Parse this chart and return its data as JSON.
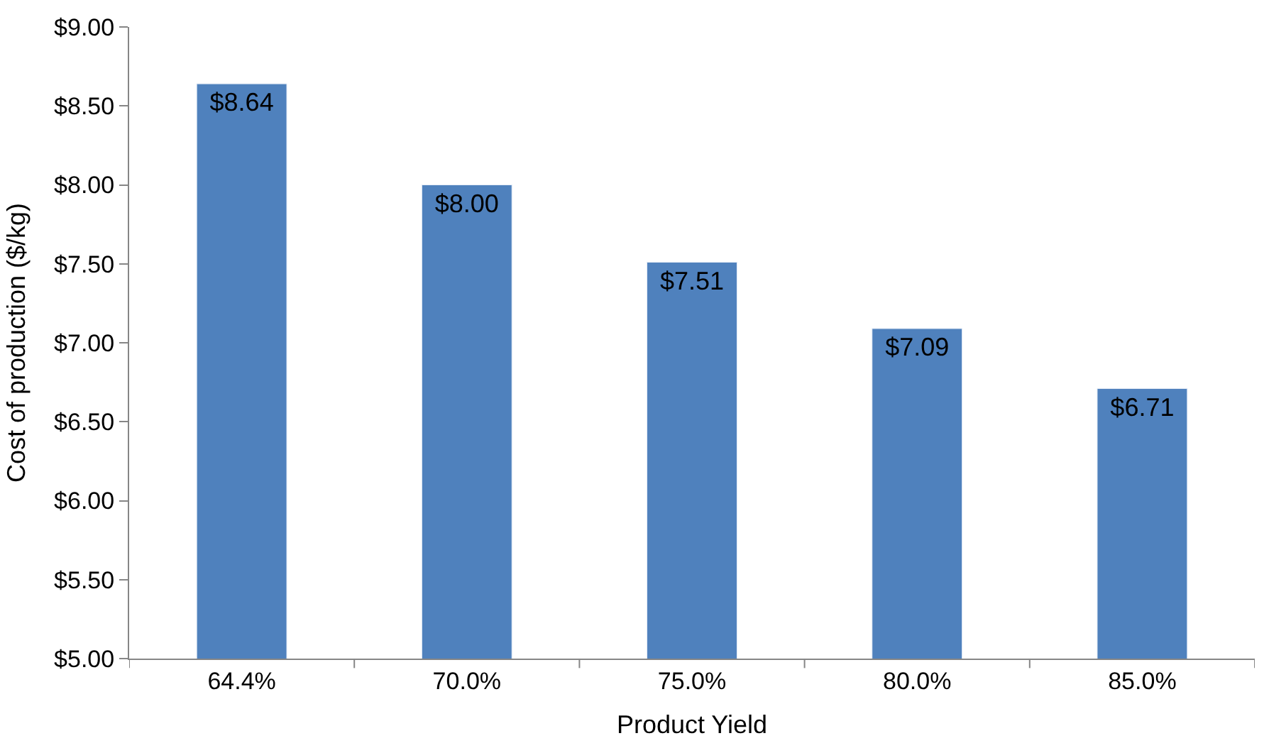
{
  "chart_data": {
    "type": "bar",
    "xlabel": "Product Yield",
    "ylabel": "Cost of production ($/kg)",
    "categories": [
      "64.4%",
      "70.0%",
      "75.0%",
      "80.0%",
      "85.0%"
    ],
    "values": [
      8.64,
      8.0,
      7.51,
      7.09,
      6.71
    ],
    "value_labels": [
      "$8.64",
      "$8.00",
      "$7.51",
      "$7.09",
      "$6.71"
    ],
    "color": "#4f81bd",
    "ylim": [
      5,
      9
    ],
    "yticks": [
      {
        "value": 5,
        "label": "$5.00"
      },
      {
        "value": 5.5,
        "label": "$5.50"
      },
      {
        "value": 6,
        "label": "$6.00"
      },
      {
        "value": 6.5,
        "label": "$6.50"
      },
      {
        "value": 7,
        "label": "$7.00"
      },
      {
        "value": 7.5,
        "label": "$7.50"
      },
      {
        "value": 8,
        "label": "$8.00"
      },
      {
        "value": 8.5,
        "label": "$8.50"
      },
      {
        "value": 9,
        "label": "$9.00"
      }
    ],
    "legend": false
  }
}
